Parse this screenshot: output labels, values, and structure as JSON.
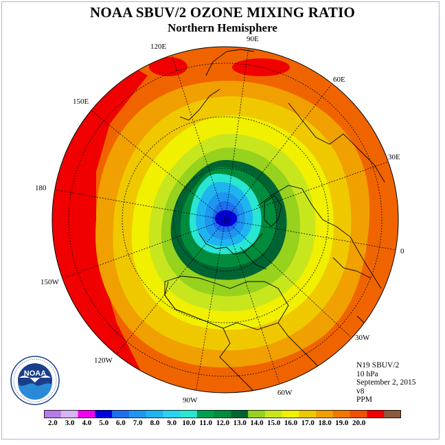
{
  "title": "NOAA SBUV/2 OZONE MIXING RATIO",
  "subtitle": "Northern Hemisphere",
  "longitude_labels": [
    {
      "id": "lon-90e",
      "text": "90E"
    },
    {
      "id": "lon-60e",
      "text": "60E"
    },
    {
      "id": "lon-30e",
      "text": "30E"
    },
    {
      "id": "lon-0",
      "text": "0"
    },
    {
      "id": "lon-30w",
      "text": "30W"
    },
    {
      "id": "lon-60w",
      "text": "60W"
    },
    {
      "id": "lon-90w",
      "text": "90W"
    },
    {
      "id": "lon-120w",
      "text": "120W"
    },
    {
      "id": "lon-150w",
      "text": "150W"
    },
    {
      "id": "lon-180",
      "text": "180"
    },
    {
      "id": "lon-150e",
      "text": "150E"
    },
    {
      "id": "lon-120e",
      "text": "120E"
    }
  ],
  "info": {
    "satellite": "N19 SBUV/2",
    "level": "10 hPa",
    "date": "September 2, 2015",
    "version": "v8",
    "units": "PPM"
  },
  "logo": {
    "text": "NOAA",
    "ring_text": "NATIONAL OCEANIC AND ATMOSPHERIC ADMINISTRATION · U.S. DEPARTMENT OF COMMERCE"
  },
  "colorbar": {
    "ticks": [
      "2.0",
      "3.0",
      "4.0",
      "5.0",
      "6.0",
      "7.0",
      "8.0",
      "9.0",
      "10.0",
      "11.0",
      "12.0",
      "13.0",
      "14.0",
      "15.0",
      "16.0",
      "17.0",
      "18.0",
      "19.0",
      "20.0"
    ],
    "colors": [
      "#b57be8",
      "#d8b4f2",
      "#f000f0",
      "#0000e0",
      "#1e6ef0",
      "#1e96f0",
      "#1eb4f0",
      "#28d2f0",
      "#28e6d2",
      "#00a050",
      "#008c3c",
      "#006432",
      "#96d21e",
      "#c8e61e",
      "#f0f000",
      "#f0c800",
      "#f0a000",
      "#f07800",
      "#f05000",
      "#f00000",
      "#8c5a3c"
    ]
  },
  "map_colors": {
    "ppm_18": "#f06400",
    "ppm_19": "#f00000",
    "ppm_17": "#f0a000",
    "ppm_16": "#f0c800",
    "ppm_15": "#f0f000",
    "ppm_14": "#c8e61e",
    "ppm_13": "#96d21e",
    "ppm_12": "#006432",
    "ppm_11": "#008c3c",
    "ppm_10": "#28e6d2",
    "ppm_9": "#1eb4f0",
    "ppm_8": "#1e96f0",
    "ppm_7": "#1e6ef0",
    "ppm_5": "#0000e0"
  }
}
